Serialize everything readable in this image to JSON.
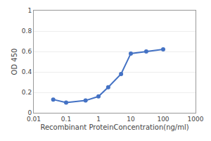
{
  "chart_data": {
    "type": "line",
    "x": [
      0.04,
      0.1,
      0.4,
      1.0,
      2.0,
      5.0,
      10.0,
      30.0,
      100.0
    ],
    "values": [
      0.13,
      0.1,
      0.12,
      0.16,
      0.25,
      0.38,
      0.58,
      0.6,
      0.62
    ],
    "color": "#4472c4",
    "marker": "circle",
    "xlabel": "Recombinant ProteinConcentration(ng/ml)",
    "ylabel": "OD 450",
    "log": "x",
    "xlim": [
      0.01,
      1000
    ],
    "ylim": [
      0,
      1.0
    ],
    "xticks": [
      0.01,
      0.1,
      1,
      10,
      100,
      1000
    ],
    "yticks": [
      0,
      0.2,
      0.4,
      0.6,
      0.8,
      1
    ],
    "grid": "y"
  }
}
